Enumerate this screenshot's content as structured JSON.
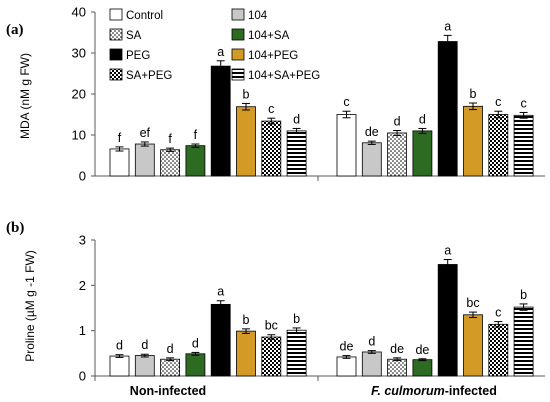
{
  "chart_data": [
    {
      "type": "bar",
      "panel_label": "(a)",
      "ylabel": "MDA (nM g FW)",
      "ylim": [
        0,
        40
      ],
      "yticks": [
        0,
        10,
        20,
        30,
        40
      ],
      "groups": [
        "Non-infected",
        "F. culmorum-infected"
      ],
      "series": [
        {
          "name": "Control",
          "values": [
            6.6,
            15.0
          ],
          "errors": [
            0.5,
            0.8
          ],
          "letters": [
            "f",
            "c"
          ]
        },
        {
          "name": "104",
          "values": [
            7.8,
            8.1
          ],
          "errors": [
            0.5,
            0.4
          ],
          "letters": [
            "ef",
            "de"
          ]
        },
        {
          "name": "SA",
          "values": [
            6.4,
            10.5
          ],
          "errors": [
            0.4,
            0.6
          ],
          "letters": [
            "f",
            "d"
          ]
        },
        {
          "name": "104+SA",
          "values": [
            7.4,
            11.0
          ],
          "errors": [
            0.4,
            0.6
          ],
          "letters": [
            "f",
            "d"
          ]
        },
        {
          "name": "PEG",
          "values": [
            26.8,
            32.8
          ],
          "errors": [
            1.3,
            1.5
          ],
          "letters": [
            "a",
            "a"
          ]
        },
        {
          "name": "104+PEG",
          "values": [
            16.9,
            17.0
          ],
          "errors": [
            0.8,
            0.8
          ],
          "letters": [
            "b",
            "b"
          ]
        },
        {
          "name": "SA+PEG",
          "values": [
            13.4,
            15.0
          ],
          "errors": [
            0.7,
            0.8
          ],
          "letters": [
            "c",
            "c"
          ]
        },
        {
          "name": "104+SA+PEG",
          "values": [
            11.0,
            14.8
          ],
          "errors": [
            0.6,
            0.7
          ],
          "letters": [
            "d",
            "c"
          ]
        }
      ],
      "legend": [
        "Control",
        "104",
        "SA",
        "104+SA",
        "PEG",
        "104+PEG",
        "SA+PEG",
        "104+SA+PEG"
      ]
    },
    {
      "type": "bar",
      "panel_label": "(b)",
      "ylabel": "Proline (µM g -1 FW)",
      "ylim": [
        0,
        3
      ],
      "yticks": [
        0,
        1,
        2,
        3
      ],
      "groups": [
        "Non-infected",
        "F. culmorum-infected"
      ],
      "series": [
        {
          "name": "Control",
          "values": [
            0.44,
            0.42
          ],
          "errors": [
            0.03,
            0.03
          ],
          "letters": [
            "d",
            "de"
          ]
        },
        {
          "name": "104",
          "values": [
            0.45,
            0.53
          ],
          "errors": [
            0.03,
            0.03
          ],
          "letters": [
            "d",
            "d"
          ]
        },
        {
          "name": "SA",
          "values": [
            0.37,
            0.37
          ],
          "errors": [
            0.03,
            0.03
          ],
          "letters": [
            "d",
            "de"
          ]
        },
        {
          "name": "104+SA",
          "values": [
            0.49,
            0.36
          ],
          "errors": [
            0.03,
            0.02
          ],
          "letters": [
            "d",
            "de"
          ]
        },
        {
          "name": "PEG",
          "values": [
            1.58,
            2.46
          ],
          "errors": [
            0.08,
            0.11
          ],
          "letters": [
            "a",
            "a"
          ]
        },
        {
          "name": "104+PEG",
          "values": [
            0.99,
            1.35
          ],
          "errors": [
            0.05,
            0.06
          ],
          "letters": [
            "b",
            "bc"
          ]
        },
        {
          "name": "SA+PEG",
          "values": [
            0.86,
            1.14
          ],
          "errors": [
            0.05,
            0.06
          ],
          "letters": [
            "bc",
            "c"
          ]
        },
        {
          "name": "104+SA+PEG",
          "values": [
            1.01,
            1.52
          ],
          "errors": [
            0.05,
            0.07
          ],
          "letters": [
            "b",
            "b"
          ]
        }
      ]
    }
  ],
  "group_labels": {
    "non_infected": "Non-infected",
    "infected_italic": "F. culmorum",
    "infected_suffix": "-infected"
  },
  "styles": {
    "Control": {
      "fill": "#ffffff",
      "pattern": "none"
    },
    "104": {
      "fill": "#c8c8c8",
      "pattern": "none"
    },
    "SA": {
      "fill": "#ffffff",
      "pattern": "dots"
    },
    "104+SA": {
      "fill": "#2e6b22",
      "pattern": "none"
    },
    "PEG": {
      "fill": "#000000",
      "pattern": "none"
    },
    "104+PEG": {
      "fill": "#d39a26",
      "pattern": "none"
    },
    "SA+PEG": {
      "fill": "#000000",
      "pattern": "checker"
    },
    "104+SA+PEG": {
      "fill": "#ffffff",
      "pattern": "hstripes"
    }
  }
}
